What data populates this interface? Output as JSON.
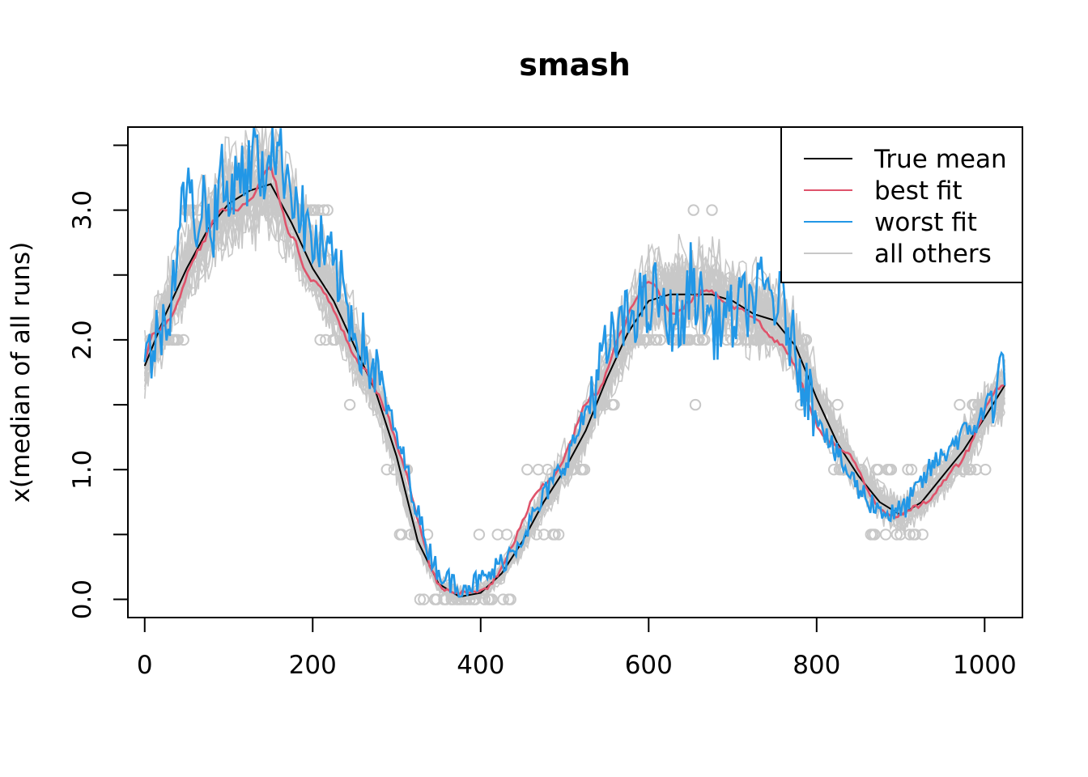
{
  "chart_data": {
    "type": "line",
    "title": "smash",
    "xlabel": "",
    "ylabel": "x(median of all runs)",
    "xlim": [
      -20,
      1045
    ],
    "ylim": [
      -0.14,
      3.64
    ],
    "x_ticks": [
      0,
      200,
      400,
      600,
      800,
      1000
    ],
    "x_tick_labels": [
      "0",
      "200",
      "400",
      "600",
      "800",
      "1000"
    ],
    "y_ticks": [
      0.0,
      0.5,
      1.0,
      1.5,
      2.0,
      2.5,
      3.0,
      3.5
    ],
    "y_tick_labels": [
      "0.0",
      "",
      "1.0",
      "",
      "2.0",
      "",
      "3.0",
      ""
    ],
    "colors": {
      "true_mean": "#000000",
      "best_fit": "#DF536B",
      "worst_fit": "#2297E6",
      "all_others": "#C8C8C8"
    },
    "legend": {
      "position": "top-right",
      "entries": [
        {
          "label": "True mean",
          "color": "#000000"
        },
        {
          "label": "best fit",
          "color": "#DF536B"
        },
        {
          "label": "worst fit",
          "color": "#2297E6"
        },
        {
          "label": "all others",
          "color": "#C8C8C8"
        }
      ]
    },
    "series": [
      {
        "name": "True mean",
        "color": "#000000",
        "x": [
          0,
          25,
          50,
          75,
          100,
          125,
          150,
          175,
          200,
          225,
          250,
          275,
          300,
          325,
          350,
          375,
          400,
          425,
          450,
          475,
          500,
          525,
          550,
          575,
          600,
          625,
          650,
          675,
          700,
          725,
          750,
          775,
          800,
          825,
          850,
          875,
          900,
          925,
          950,
          975,
          1000,
          1024
        ],
        "y": [
          1.8,
          2.2,
          2.55,
          2.85,
          3.05,
          3.15,
          3.2,
          2.9,
          2.55,
          2.3,
          1.95,
          1.6,
          1.1,
          0.45,
          0.12,
          0.02,
          0.05,
          0.2,
          0.45,
          0.75,
          1.0,
          1.3,
          1.7,
          2.05,
          2.3,
          2.35,
          2.35,
          2.35,
          2.3,
          2.2,
          2.15,
          1.95,
          1.55,
          1.2,
          0.95,
          0.75,
          0.65,
          0.75,
          0.95,
          1.15,
          1.4,
          1.65
        ]
      },
      {
        "name": "best fit",
        "color": "#DF536B",
        "x": [
          0,
          10,
          20,
          30,
          40,
          50,
          60,
          70,
          80,
          90,
          100,
          110,
          120,
          130,
          140,
          150,
          160,
          170,
          180,
          190,
          200,
          210,
          220,
          230,
          240,
          250,
          260,
          270,
          280,
          290,
          300,
          310,
          320,
          330,
          340,
          350,
          360,
          370,
          380,
          390,
          400,
          410,
          420,
          430,
          440,
          450,
          460,
          470,
          480,
          490,
          500,
          510,
          520,
          530,
          540,
          550,
          560,
          570,
          580,
          590,
          600,
          610,
          620,
          630,
          640,
          650,
          660,
          670,
          680,
          690,
          700,
          710,
          720,
          730,
          740,
          750,
          760,
          770,
          780,
          790,
          800,
          810,
          820,
          830,
          840,
          850,
          860,
          870,
          880,
          890,
          900,
          910,
          920,
          930,
          940,
          950,
          960,
          970,
          980,
          990,
          1000,
          1010,
          1020
        ],
        "y": [
          1.85,
          2.05,
          2.1,
          2.15,
          2.3,
          2.5,
          2.65,
          2.75,
          2.9,
          3.0,
          3.0,
          3.0,
          3.05,
          3.1,
          3.25,
          3.35,
          3.1,
          2.85,
          2.75,
          2.55,
          2.45,
          2.4,
          2.3,
          2.15,
          2.0,
          1.85,
          1.78,
          1.7,
          1.55,
          1.4,
          1.2,
          1.0,
          0.75,
          0.5,
          0.25,
          0.12,
          0.06,
          0.05,
          0.05,
          0.05,
          0.07,
          0.1,
          0.18,
          0.3,
          0.45,
          0.6,
          0.75,
          0.85,
          0.9,
          0.98,
          1.1,
          1.25,
          1.45,
          1.55,
          1.6,
          1.75,
          1.95,
          2.1,
          2.25,
          2.38,
          2.45,
          2.4,
          2.25,
          2.2,
          2.25,
          2.3,
          2.35,
          2.4,
          2.35,
          2.3,
          2.25,
          2.25,
          2.2,
          2.15,
          2.05,
          2.0,
          1.95,
          1.85,
          1.7,
          1.5,
          1.35,
          1.25,
          1.2,
          1.15,
          1.1,
          1.0,
          0.85,
          0.75,
          0.68,
          0.65,
          0.65,
          0.68,
          0.72,
          0.75,
          0.8,
          0.9,
          1.0,
          1.05,
          1.15,
          1.3,
          1.45,
          1.6,
          1.65
        ]
      },
      {
        "name": "worst fit",
        "color": "#2297E6",
        "x": [
          0,
          10,
          20,
          30,
          40,
          50,
          60,
          70,
          80,
          90,
          100,
          110,
          120,
          130,
          140,
          150,
          160,
          170,
          180,
          190,
          200,
          210,
          220,
          230,
          240,
          250,
          260,
          270,
          280,
          290,
          300,
          310,
          320,
          330,
          340,
          350,
          360,
          370,
          380,
          390,
          400,
          410,
          420,
          430,
          440,
          450,
          460,
          470,
          480,
          490,
          500,
          510,
          520,
          530,
          540,
          550,
          560,
          570,
          580,
          590,
          600,
          610,
          620,
          630,
          640,
          650,
          660,
          670,
          680,
          690,
          700,
          710,
          720,
          730,
          740,
          750,
          760,
          770,
          780,
          790,
          800,
          810,
          820,
          830,
          840,
          850,
          860,
          870,
          880,
          890,
          900,
          910,
          920,
          930,
          940,
          950,
          960,
          970,
          980,
          990,
          1000,
          1010,
          1020
        ],
        "y": [
          1.8,
          1.95,
          2.1,
          2.3,
          2.8,
          3.2,
          2.9,
          3.1,
          2.8,
          3.3,
          3.0,
          3.4,
          3.2,
          3.5,
          3.2,
          3.55,
          3.4,
          3.3,
          3.1,
          2.9,
          2.75,
          2.7,
          2.6,
          2.5,
          2.3,
          2.1,
          1.95,
          1.8,
          1.65,
          1.45,
          1.25,
          1.05,
          0.8,
          0.55,
          0.35,
          0.22,
          0.15,
          0.12,
          0.11,
          0.12,
          0.14,
          0.18,
          0.25,
          0.32,
          0.4,
          0.5,
          0.6,
          0.72,
          0.85,
          0.95,
          1.05,
          1.2,
          1.35,
          1.55,
          1.75,
          1.9,
          2.0,
          2.1,
          2.2,
          2.3,
          2.2,
          2.4,
          2.1,
          2.2,
          2.05,
          2.5,
          2.3,
          2.2,
          2.1,
          2.2,
          2.15,
          2.25,
          2.3,
          2.35,
          2.4,
          2.3,
          2.25,
          2.0,
          1.8,
          1.6,
          1.45,
          1.3,
          1.15,
          1.05,
          0.95,
          0.85,
          0.78,
          0.72,
          0.68,
          0.65,
          0.68,
          0.75,
          0.85,
          0.95,
          1.05,
          1.1,
          1.2,
          1.25,
          1.3,
          1.35,
          1.45,
          1.6,
          1.75
        ]
      }
    ],
    "others": {
      "name": "all others",
      "color": "#C8C8C8",
      "count": 30,
      "description_values": "quantized point values observed",
      "point_levels": [
        0.0,
        0.5,
        1.0,
        1.5,
        2.0,
        3.0
      ]
    }
  }
}
